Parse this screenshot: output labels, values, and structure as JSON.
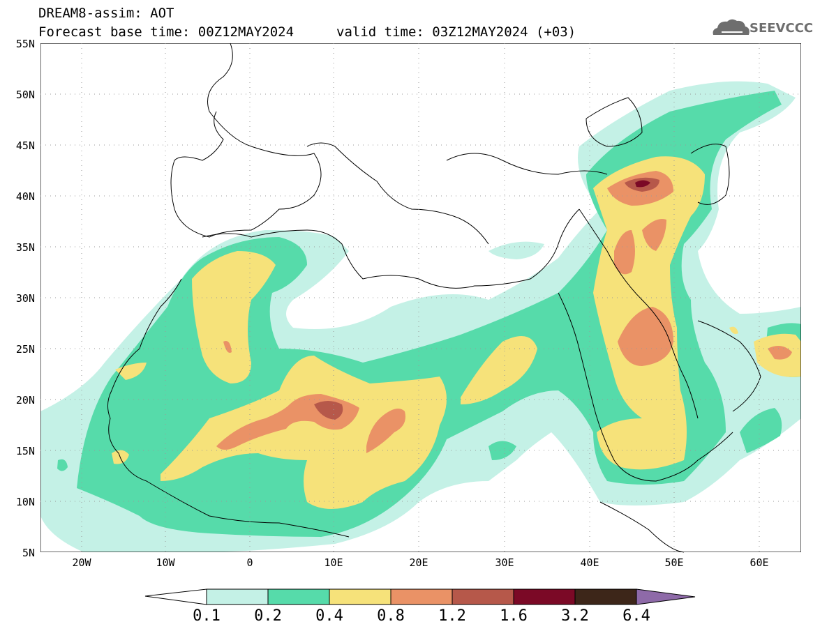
{
  "header": {
    "model_title": "DREAM8-assim: AOT",
    "base_time": "Forecast base time: 00Z12MAY2024",
    "valid_time": "valid time: 03Z12MAY2024 (+03)",
    "logo_text": "SEEVCCC"
  },
  "axes": {
    "lat_labels": [
      "55N",
      "50N",
      "45N",
      "40N",
      "35N",
      "30N",
      "25N",
      "20N",
      "15N",
      "10N",
      "5N"
    ],
    "lon_labels": [
      "20W",
      "10W",
      "0",
      "10E",
      "20E",
      "30E",
      "40E",
      "50E",
      "60E"
    ]
  },
  "colorbar": {
    "labels": [
      "0.1",
      "0.2",
      "0.4",
      "0.8",
      "1.2",
      "1.6",
      "3.2",
      "6.4"
    ],
    "colors": [
      "#ffffff",
      "#c4f1e6",
      "#56dbaa",
      "#f6e27a",
      "#ea9266",
      "#b6584a",
      "#7b0926",
      "#3d2619",
      "#8e6aa8"
    ]
  }
}
